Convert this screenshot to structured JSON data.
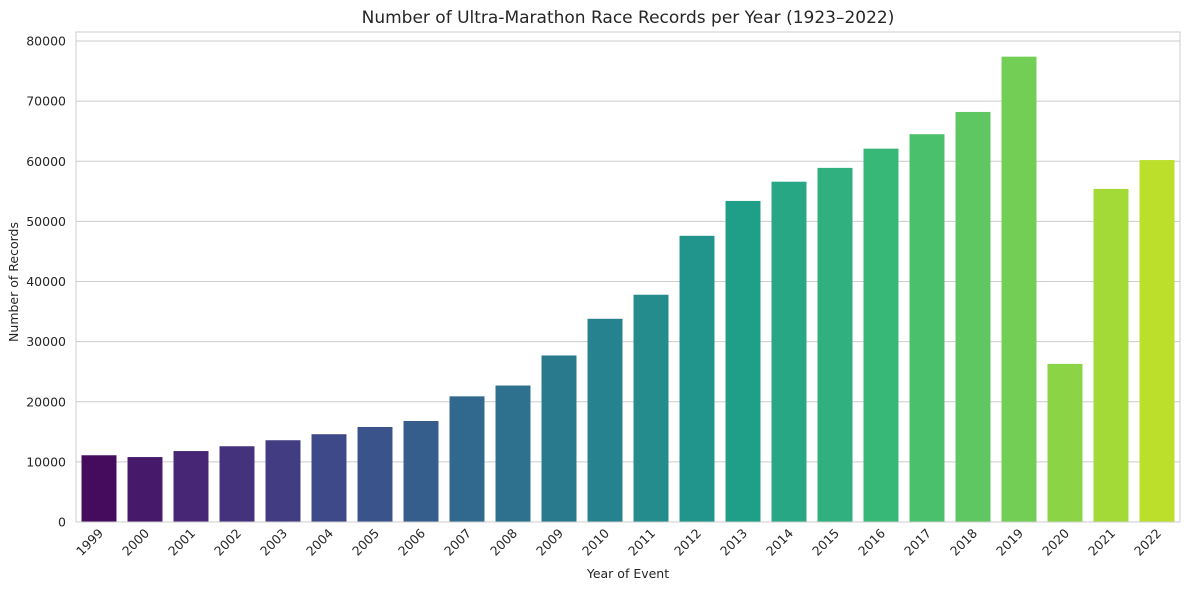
{
  "chart_data": {
    "type": "bar",
    "title": "Number of Ultra-Marathon Race Records per Year (1923–2022)",
    "xlabel": "Year of Event",
    "ylabel": "Number of Records",
    "categories": [
      "1999",
      "2000",
      "2001",
      "2002",
      "2003",
      "2004",
      "2005",
      "2006",
      "2007",
      "2008",
      "2009",
      "2010",
      "2011",
      "2012",
      "2013",
      "2014",
      "2015",
      "2016",
      "2017",
      "2018",
      "2019",
      "2020",
      "2021",
      "2022"
    ],
    "values": [
      11100,
      10800,
      11800,
      12600,
      13600,
      14600,
      15800,
      16800,
      20900,
      22700,
      27700,
      33800,
      37800,
      47600,
      53400,
      56600,
      58900,
      62100,
      64500,
      68200,
      77400,
      26300,
      55400,
      60200
    ],
    "ylim": [
      0,
      81500
    ],
    "yticks": [
      0,
      10000,
      20000,
      30000,
      40000,
      50000,
      60000,
      70000,
      80000
    ],
    "grid": true,
    "legend": "none",
    "palette": "viridis"
  }
}
